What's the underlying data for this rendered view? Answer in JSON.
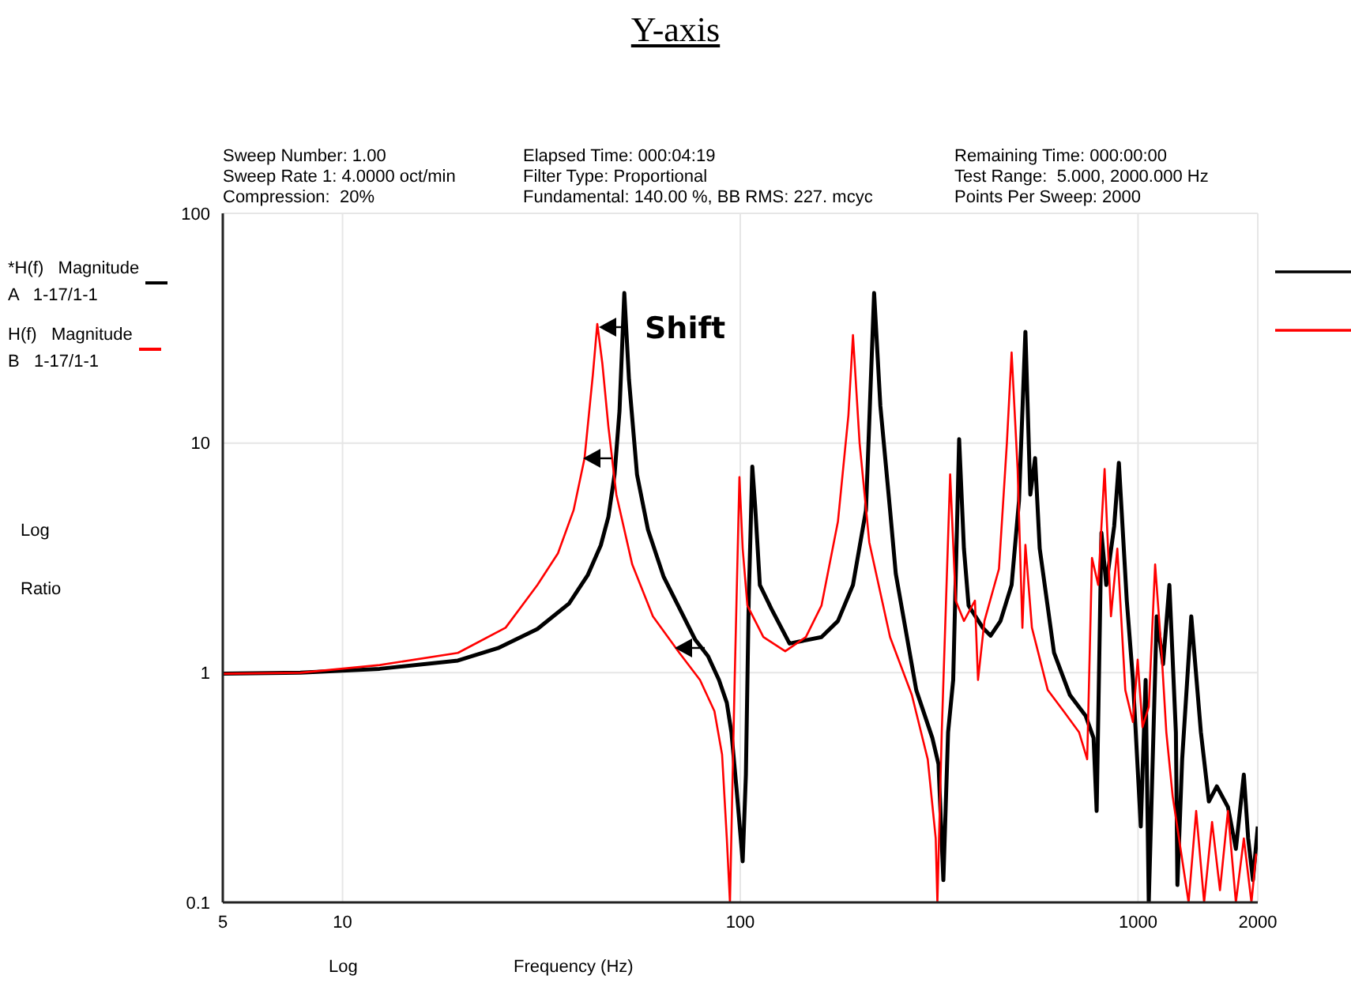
{
  "chart_data": {
    "type": "line",
    "title": "Y-axis",
    "xlabel": "Frequency (Hz)",
    "ylabel": "Log Ratio",
    "annotations": [
      "Sweep Number: 1.00",
      "Sweep Rate 1: 4.0000 oct/min",
      "Compression:  20%",
      "Elapsed Time: 000:04:19",
      "Filter Type: Proportional",
      "Fundamental: 140.00 %, BB RMS: 227. mcyc",
      "Remaining Time: 000:00:00",
      "Test Range:  5.000, 2000.000 Hz",
      "Points Per Sweep: 2000",
      "Shift",
      "Log"
    ],
    "log": "xy",
    "xlim": [
      5,
      2000
    ],
    "xticks": [
      5,
      10,
      100,
      1000,
      2000
    ],
    "ylim": [
      0.1,
      100
    ],
    "yticks": [
      0.1,
      1,
      10,
      100
    ],
    "grid": true,
    "legend": "left",
    "series": [
      {
        "name": "*H(f)   Magnitude\nA   1-17/1-1",
        "color": "#000000",
        "x": [
          5,
          7.83,
          12.4,
          19.5,
          24.6,
          30.9,
          37.1,
          41.4,
          44.6,
          46.6,
          48.3,
          49.7,
          51.1,
          52.5,
          55,
          58.6,
          64.2,
          70.3,
          77.1,
          83,
          88.4,
          92.5,
          95,
          97.9,
          101.4,
          103.3,
          105,
          107.2,
          109,
          112,
          119.7,
          133,
          160,
          176,
          192,
          207,
          217,
          225,
          238,
          246,
          277,
          304,
          315,
          324,
          333,
          343,
          355,
          365,
          375,
          407,
          426,
          451,
          481,
          502,
          521,
          536,
          551,
          566,
          615,
          674,
          738,
          773,
          787,
          809,
          832,
          871,
          895,
          937,
          971,
          1016,
          1045,
          1064,
          1114,
          1156,
          1199,
          1245,
          1256,
          1291,
          1361,
          1439,
          1507,
          1578,
          1683,
          1762,
          1845,
          1892,
          1945,
          2000
        ],
        "values": [
          0.99,
          1.0,
          1.04,
          1.13,
          1.28,
          1.55,
          2.0,
          2.67,
          3.59,
          4.77,
          7.3,
          13.8,
          45,
          18.9,
          7.3,
          4.2,
          2.61,
          1.91,
          1.39,
          1.18,
          0.93,
          0.74,
          0.55,
          0.31,
          0.151,
          0.36,
          2.06,
          7.9,
          5.3,
          2.41,
          1.9,
          1.34,
          1.43,
          1.68,
          2.41,
          5.1,
          45,
          14.5,
          5.1,
          2.7,
          0.84,
          0.52,
          0.4,
          0.125,
          0.55,
          0.93,
          10.4,
          3.47,
          1.96,
          1.57,
          1.45,
          1.68,
          2.41,
          5.6,
          30.5,
          5.96,
          8.6,
          3.47,
          1.22,
          0.8,
          0.65,
          0.52,
          0.25,
          4.07,
          2.41,
          4.34,
          8.2,
          2.06,
          0.93,
          0.214,
          0.93,
          0.1,
          1.76,
          1.09,
          2.41,
          0.55,
          0.119,
          0.42,
          1.76,
          0.55,
          0.275,
          0.32,
          0.26,
          0.171,
          0.36,
          0.19,
          0.125,
          0.214
        ]
      },
      {
        "name": "H(f)   Magnitude\nB   1-17/1-1",
        "color": "#ff0000",
        "x": [
          5,
          7.83,
          12.4,
          19.5,
          25.7,
          30.9,
          34.8,
          38.1,
          40.6,
          42.6,
          43.7,
          45,
          46.6,
          48.8,
          53.5,
          60.3,
          70.3,
          79.2,
          86.1,
          90,
          92.5,
          94.2,
          96.8,
          99.5,
          101.4,
          104.2,
          114.3,
          129.7,
          146.2,
          160,
          176,
          187,
          192,
          199.5,
          211,
          238,
          270,
          296,
          310,
          313,
          321,
          337,
          348,
          365,
          389,
          396,
          411,
          447,
          468,
          481,
          498,
          512,
          521,
          541,
          593,
          650,
          711,
          745,
          766,
          794,
          824,
          855,
          887,
          929,
          971,
          998,
          1026,
          1064,
          1104,
          1146,
          1178,
          1222,
          1279,
          1340,
          1400,
          1466,
          1535,
          1607,
          1683,
          1762,
          1845,
          1928,
          1982
        ],
        "values": [
          0.99,
          1.0,
          1.08,
          1.22,
          1.57,
          2.41,
          3.31,
          5.1,
          8.6,
          19.9,
          33,
          22.2,
          11.8,
          5.96,
          2.96,
          1.76,
          1.22,
          0.93,
          0.68,
          0.44,
          0.19,
          0.1,
          0.93,
          7.1,
          3.47,
          1.96,
          1.43,
          1.24,
          1.43,
          1.96,
          4.55,
          13.2,
          29.5,
          10.0,
          3.7,
          1.43,
          0.8,
          0.42,
          0.19,
          0.1,
          0.55,
          7.3,
          2.06,
          1.68,
          2.06,
          0.93,
          1.68,
          2.83,
          10.0,
          24.8,
          7.7,
          1.57,
          3.6,
          1.57,
          0.84,
          0.68,
          0.55,
          0.42,
          3.16,
          2.41,
          7.7,
          1.76,
          3.47,
          0.84,
          0.61,
          1.14,
          0.58,
          0.71,
          2.96,
          1.22,
          0.55,
          0.29,
          0.171,
          0.1,
          0.25,
          0.1,
          0.224,
          0.113,
          0.25,
          0.1,
          0.19,
          0.1,
          0.163
        ]
      }
    ]
  }
}
